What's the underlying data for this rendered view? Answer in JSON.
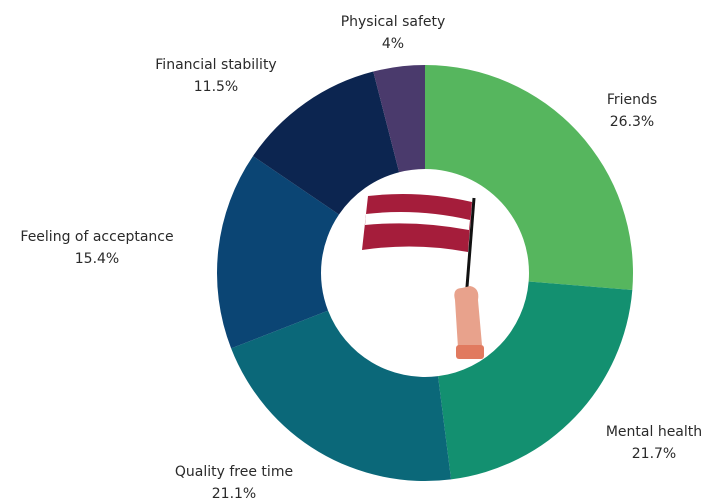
{
  "chart_data": {
    "type": "donut",
    "categories": [
      "Friends",
      "Mental health",
      "Quality free time",
      "Feeling of acceptance",
      "Financial stability",
      "Physical safety"
    ],
    "values": [
      26.3,
      21.7,
      21.1,
      15.4,
      11.5,
      4
    ],
    "value_labels": [
      "26.3%",
      "21.7%",
      "21.1%",
      "15.4%",
      "11.5%",
      "4%"
    ],
    "colors": [
      "#56b65e",
      "#139070",
      "#0b6879",
      "#0b4574",
      "#0c2550",
      "#4a3a6c"
    ]
  }
}
